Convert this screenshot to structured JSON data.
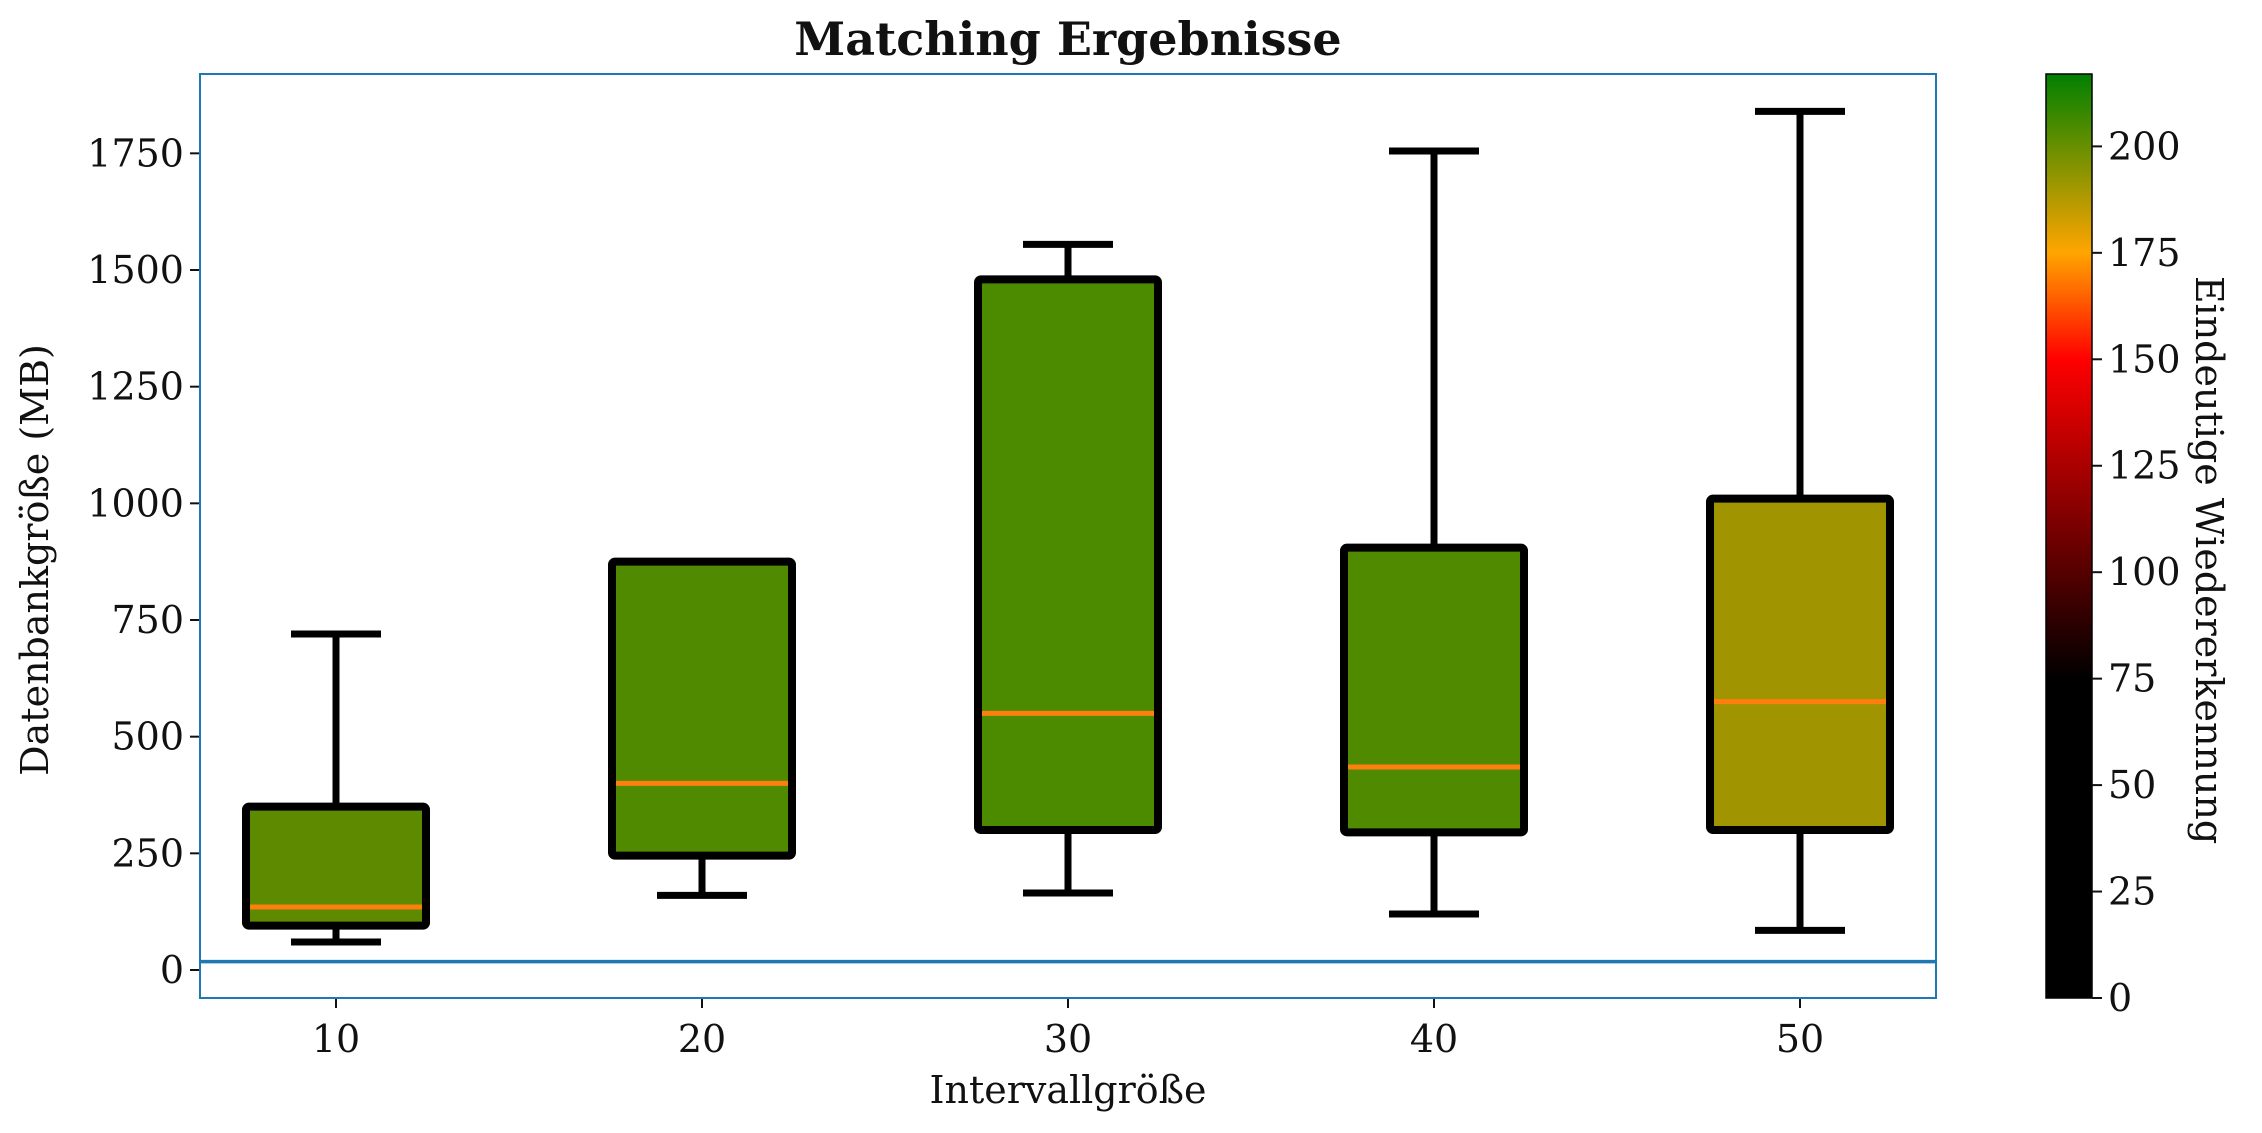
{
  "chart_data": {
    "type": "box",
    "title": "Matching Ergebnisse",
    "xlabel": "Intervallgröße",
    "ylabel": "Datenbankgröße (MB)",
    "categories": [
      "10",
      "20",
      "30",
      "40",
      "50"
    ],
    "ylim": [
      -60,
      1920
    ],
    "yticks": [
      0,
      250,
      500,
      750,
      1000,
      1250,
      1500,
      1750
    ],
    "ytick_labels": [
      "0",
      "250",
      "500",
      "750",
      "1000",
      "1250",
      "1500",
      "1750"
    ],
    "boxes": [
      {
        "category": "10",
        "whisker_low": 60,
        "q1": 95,
        "median": 135,
        "q3": 350,
        "whisker_high": 720,
        "recognitions": 200,
        "color": "#5e8a00"
      },
      {
        "category": "20",
        "whisker_low": 160,
        "q1": 245,
        "median": 400,
        "q3": 875,
        "whisker_high": 875,
        "recognitions": 205,
        "color": "#508a00"
      },
      {
        "category": "30",
        "whisker_low": 165,
        "q1": 300,
        "median": 550,
        "q3": 1480,
        "whisker_high": 1555,
        "recognitions": 207,
        "color": "#4c8a00"
      },
      {
        "category": "40",
        "whisker_low": 120,
        "q1": 295,
        "median": 435,
        "q3": 905,
        "whisker_high": 1755,
        "recognitions": 205,
        "color": "#508a00"
      },
      {
        "category": "50",
        "whisker_low": 85,
        "q1": 300,
        "median": 575,
        "q3": 1010,
        "whisker_high": 1840,
        "recognitions": 192,
        "color": "#a09500"
      }
    ],
    "reference_line": 18,
    "median_color": "#ff7f0e",
    "frame_color": "#1f77b4",
    "colorbar": {
      "label": "Eindeutige Wiedererkennung",
      "range": [
        0,
        217
      ],
      "ticks": [
        0,
        25,
        50,
        75,
        100,
        125,
        150,
        175,
        200
      ],
      "tick_labels": [
        "0",
        "25",
        "50",
        "75",
        "100",
        "125",
        "150",
        "175",
        "200"
      ],
      "stops": [
        {
          "value": 0,
          "color": "#000000"
        },
        {
          "value": 75,
          "color": "#000000"
        },
        {
          "value": 150,
          "color": "#ff0000"
        },
        {
          "value": 175,
          "color": "#ffa500"
        },
        {
          "value": 217,
          "color": "#008000"
        }
      ]
    }
  }
}
